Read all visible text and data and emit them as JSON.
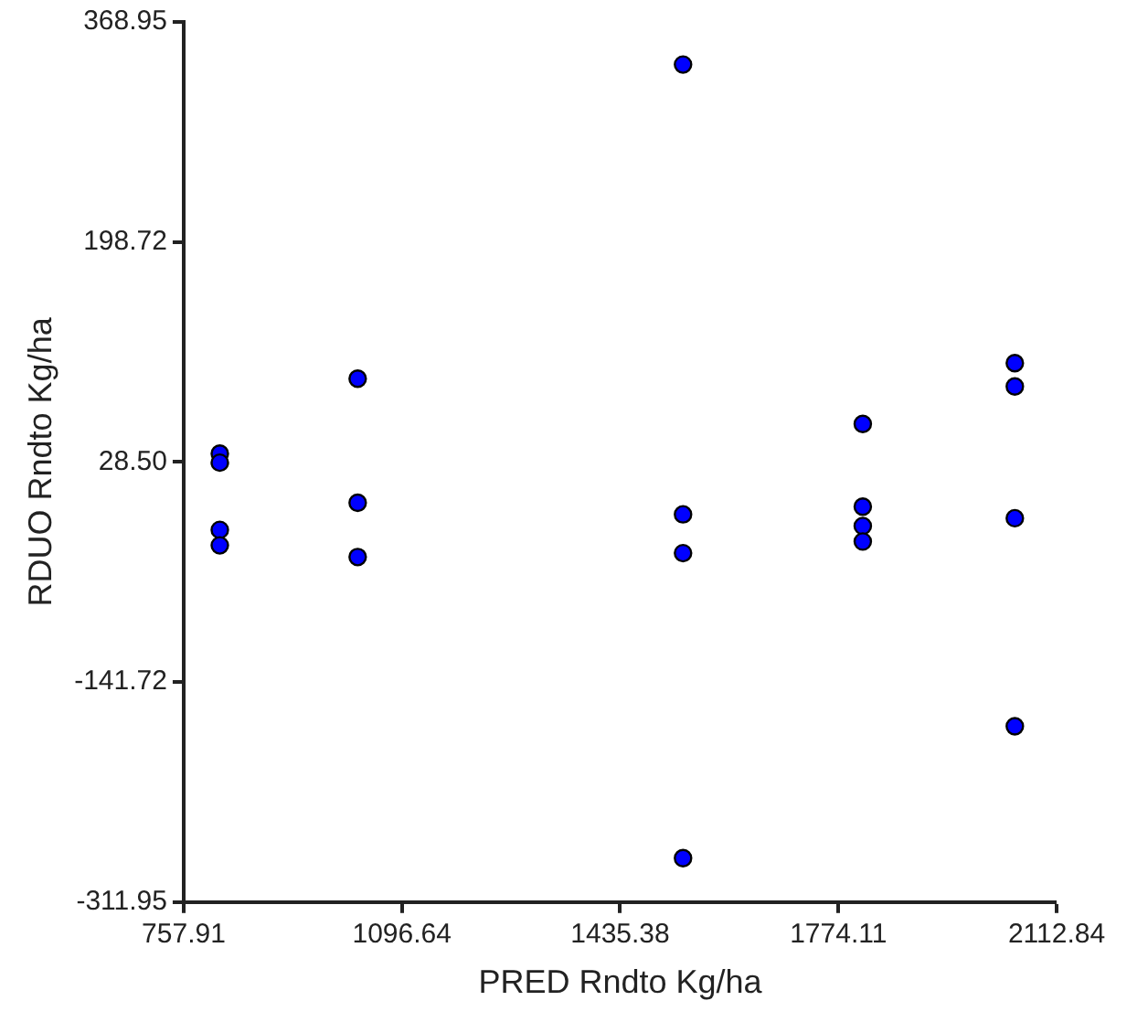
{
  "chart_data": {
    "type": "scatter",
    "xlabel": "PRED Rndto Kg/ha",
    "ylabel": "RDUO Rndto Kg/ha",
    "x": [
      814,
      814,
      814,
      814,
      1028,
      1028,
      1028,
      1533,
      1533,
      1533,
      1533,
      1812,
      1812,
      1812,
      1812,
      2048,
      2048,
      2048,
      2048
    ],
    "series": [
      {
        "color": "#0000ff",
        "values": [
          35,
          28,
          -24,
          -36,
          93,
          -3,
          -45,
          336,
          -12,
          -42,
          -278,
          58,
          -6,
          -21,
          -33,
          105,
          87,
          -15,
          -176
        ]
      }
    ],
    "xlim": [
      757.91,
      2112.84
    ],
    "xticks": [
      757.91,
      1096.64,
      1435.38,
      1774.11,
      2112.84
    ],
    "ylim": [
      -311.95,
      368.95
    ],
    "yticks": [
      -311.95,
      -141.72,
      {
        "value": 28.5,
        "label": "28.50"
      },
      198.72,
      368.95
    ],
    "grid": false,
    "legend": false,
    "marker": "circle"
  }
}
